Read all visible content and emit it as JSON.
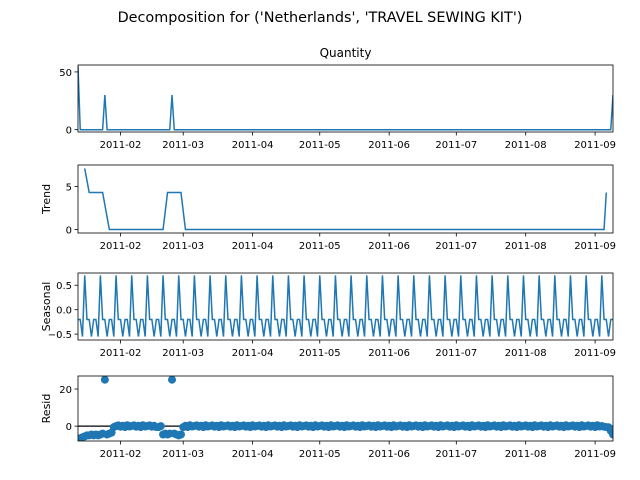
{
  "figure": {
    "suptitle": "Decomposition for ('Netherlands', 'TRAVEL SEWING KIT')",
    "line_color": "#1f77b4"
  },
  "x_axis": {
    "start_date": "2011-01-13",
    "end_date": "2011-09-09",
    "ticks": [
      {
        "date": "2011-02-01",
        "label": "2011-02"
      },
      {
        "date": "2011-03-01",
        "label": "2011-03"
      },
      {
        "date": "2011-04-01",
        "label": "2011-04"
      },
      {
        "date": "2011-05-01",
        "label": "2011-05"
      },
      {
        "date": "2011-06-01",
        "label": "2011-06"
      },
      {
        "date": "2011-07-01",
        "label": "2011-07"
      },
      {
        "date": "2011-08-01",
        "label": "2011-08"
      },
      {
        "date": "2011-09-01",
        "label": "2011-09"
      }
    ]
  },
  "chart_data": [
    {
      "type": "line",
      "title": "Quantity",
      "ylabel": "",
      "ylim": [
        -2,
        56
      ],
      "yticks": [
        {
          "value": 0,
          "label": "0"
        },
        {
          "value": 50,
          "label": "50"
        }
      ],
      "points": [
        {
          "x": "2011-01-13",
          "y": 55
        },
        {
          "x": "2011-01-14",
          "y": 0
        },
        {
          "x": "2011-01-24",
          "y": 0
        },
        {
          "x": "2011-01-25",
          "y": 30
        },
        {
          "x": "2011-01-26",
          "y": 0
        },
        {
          "x": "2011-02-23",
          "y": 0
        },
        {
          "x": "2011-02-24",
          "y": 30
        },
        {
          "x": "2011-02-25",
          "y": 0
        },
        {
          "x": "2011-09-08",
          "y": 0
        },
        {
          "x": "2011-09-09",
          "y": 30
        }
      ]
    },
    {
      "type": "line",
      "title": "",
      "ylabel": "Trend",
      "ylim": [
        -0.4,
        7.5
      ],
      "yticks": [
        {
          "value": 0,
          "label": "0"
        },
        {
          "value": 5,
          "label": "5"
        }
      ],
      "points": [
        {
          "x": "2011-01-16",
          "y": 7.1
        },
        {
          "x": "2011-01-18",
          "y": 4.3
        },
        {
          "x": "2011-01-24",
          "y": 4.3
        },
        {
          "x": "2011-01-27",
          "y": 0
        },
        {
          "x": "2011-02-20",
          "y": 0
        },
        {
          "x": "2011-02-22",
          "y": 4.3
        },
        {
          "x": "2011-02-28",
          "y": 4.3
        },
        {
          "x": "2011-03-02",
          "y": 0
        },
        {
          "x": "2011-09-05",
          "y": 0
        },
        {
          "x": "2011-09-06",
          "y": 4.3
        }
      ]
    },
    {
      "type": "line",
      "title": "",
      "ylabel": "Seasonal",
      "ylim": [
        -0.62,
        0.75
      ],
      "yticks": [
        {
          "value": -0.5,
          "label": "−0.5"
        },
        {
          "value": 0,
          "label": "0.0"
        },
        {
          "value": 0.5,
          "label": "0.5"
        }
      ],
      "period": 7,
      "pattern": [
        -0.2,
        -0.2,
        -0.55,
        0.7,
        -0.2,
        -0.2,
        -0.55
      ],
      "start": "2011-01-13",
      "end": "2011-09-09"
    },
    {
      "type": "scatter",
      "title": "",
      "ylabel": "Resid",
      "ylim": [
        -8,
        27
      ],
      "yticks": [
        {
          "value": 0,
          "label": "0"
        },
        {
          "value": 20,
          "label": "20"
        }
      ],
      "baseline": 0,
      "points": [
        {
          "x": "2011-01-14",
          "y": -6.5
        },
        {
          "x": "2011-01-15",
          "y": -6
        },
        {
          "x": "2011-01-16",
          "y": -5.5
        },
        {
          "x": "2011-01-17",
          "y": -5
        },
        {
          "x": "2011-01-18",
          "y": -5
        },
        {
          "x": "2011-01-19",
          "y": -4.5
        },
        {
          "x": "2011-01-20",
          "y": -5
        },
        {
          "x": "2011-01-21",
          "y": -4.5
        },
        {
          "x": "2011-01-22",
          "y": -5
        },
        {
          "x": "2011-01-23",
          "y": -4.5
        },
        {
          "x": "2011-01-24",
          "y": -4
        },
        {
          "x": "2011-01-25",
          "y": 25
        },
        {
          "x": "2011-01-26",
          "y": -4.5
        },
        {
          "x": "2011-01-27",
          "y": -4
        },
        {
          "x": "2011-01-28",
          "y": -3.5
        },
        {
          "x": "2011-01-29",
          "y": -0.5
        },
        {
          "x": "2011-01-30",
          "y": 0
        },
        {
          "x": "2011-02-18",
          "y": -0.5
        },
        {
          "x": "2011-02-19",
          "y": 0
        },
        {
          "x": "2011-02-20",
          "y": -4.5
        },
        {
          "x": "2011-02-21",
          "y": -4
        },
        {
          "x": "2011-02-22",
          "y": -4.5
        },
        {
          "x": "2011-02-23",
          "y": -4
        },
        {
          "x": "2011-02-24",
          "y": 25
        },
        {
          "x": "2011-02-25",
          "y": -4
        },
        {
          "x": "2011-02-26",
          "y": -4.5
        },
        {
          "x": "2011-02-27",
          "y": -5
        },
        {
          "x": "2011-02-28",
          "y": -4.5
        },
        {
          "x": "2011-03-01",
          "y": -0.5
        },
        {
          "x": "2011-09-05",
          "y": -0.3
        },
        {
          "x": "2011-09-06",
          "y": -0.5
        },
        {
          "x": "2011-09-07",
          "y": -0.6
        },
        {
          "x": "2011-09-08",
          "y": -2.5
        },
        {
          "x": "2011-09-09",
          "y": -4.5
        }
      ],
      "fill_start": "2011-01-31",
      "fill_end": "2011-09-04",
      "fill_pattern": [
        0.4,
        -0.3,
        0.2,
        -0.5,
        0.5,
        -0.2,
        0.1
      ],
      "fill_gap": [
        "2011-02-18",
        "2011-03-01"
      ]
    }
  ]
}
